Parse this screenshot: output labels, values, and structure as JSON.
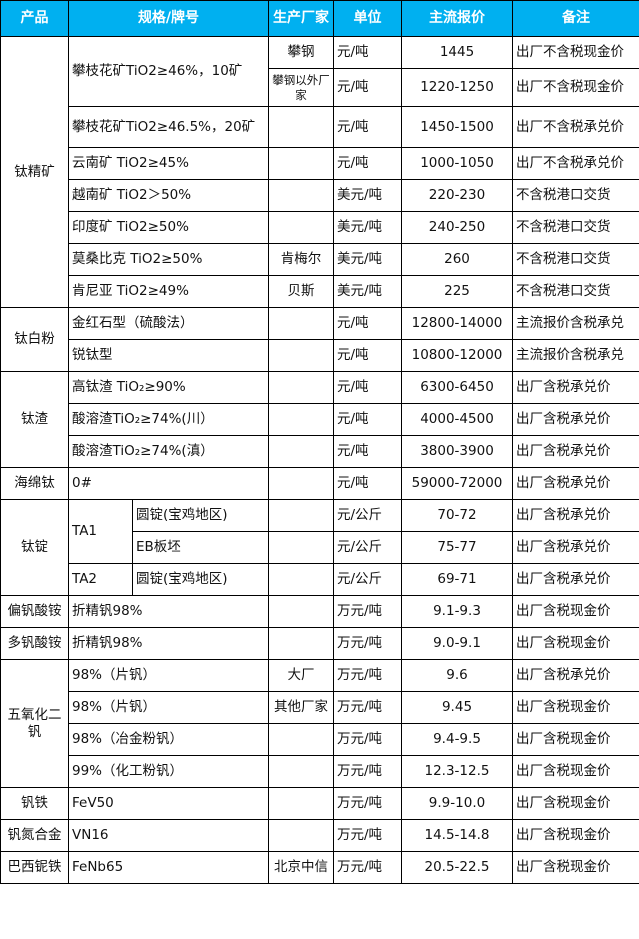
{
  "header": {
    "product": "产品",
    "spec": "规格/牌号",
    "maker": "生产厂家",
    "unit": "单位",
    "price": "主流报价",
    "note": "备注"
  },
  "colors": {
    "header_bg": "#00B0F0",
    "header_text": "#FFFFFF"
  },
  "groups": [
    {
      "product": "钛精矿",
      "rows": [
        {
          "spec": "攀枝花矿TiO2≥46%，10矿",
          "maker": "攀钢",
          "unit": "元/吨",
          "price": "1445",
          "note": "出厂不含税现金价"
        },
        {
          "maker": "攀钢以外厂家",
          "unit": "元/吨",
          "price": "1220-1250",
          "note": "出厂不含税现金价"
        },
        {
          "spec": "攀枝花矿TiO2≥46.5%，20矿",
          "maker": "",
          "unit": "元/吨",
          "price": "1450-1500",
          "note": "出厂不含税承兑价"
        },
        {
          "spec": "云南矿 TiO2≥45%",
          "maker": "",
          "unit": "元/吨",
          "price": "1000-1050",
          "note": "出厂不含税承兑价"
        },
        {
          "spec": "越南矿 TiO2＞50%",
          "maker": "",
          "unit": "美元/吨",
          "price": "220-230",
          "note": "不含税港口交货"
        },
        {
          "spec": "印度矿 TiO2≥50%",
          "maker": "",
          "unit": "美元/吨",
          "price": "240-250",
          "note": "不含税港口交货"
        },
        {
          "spec": "莫桑比克 TiO2≥50%",
          "maker": "肯梅尔",
          "unit": "美元/吨",
          "price": "260",
          "note": "不含税港口交货"
        },
        {
          "spec": "肯尼亚 TiO2≥49%",
          "maker": "贝斯",
          "unit": "美元/吨",
          "price": "225",
          "note": "不含税港口交货"
        }
      ]
    },
    {
      "product": "钛白粉",
      "rows": [
        {
          "spec": "金红石型（硫酸法）",
          "maker": "",
          "unit": "元/吨",
          "price": "12800-14000",
          "note": "主流报价含税承兑"
        },
        {
          "spec": "锐钛型",
          "maker": "",
          "unit": "元/吨",
          "price": "10800-12000",
          "note": "主流报价含税承兑"
        }
      ]
    },
    {
      "product": "钛渣",
      "rows": [
        {
          "spec": "高钛渣 TiO₂≥90%",
          "maker": "",
          "unit": "元/吨",
          "price": "6300-6450",
          "note": "出厂含税承兑价"
        },
        {
          "spec": "酸溶渣TiO₂≥74%(川）",
          "maker": "",
          "unit": "元/吨",
          "price": "4000-4500",
          "note": "出厂含税承兑价"
        },
        {
          "spec": "酸溶渣TiO₂≥74%(滇）",
          "maker": "",
          "unit": "元/吨",
          "price": "3800-3900",
          "note": "出厂含税承兑价"
        }
      ]
    },
    {
      "product": "海绵钛",
      "rows": [
        {
          "spec": "0#",
          "maker": "",
          "unit": "元/吨",
          "price": "59000-72000",
          "note": "出厂含税承兑价"
        }
      ]
    },
    {
      "product": "钛锭",
      "rows": [
        {
          "grade": "TA1",
          "sub": "圆锭(宝鸡地区)",
          "maker": "",
          "unit": "元/公斤",
          "price": "70-72",
          "note": "出厂含税承兑价"
        },
        {
          "sub": "EB板坯",
          "maker": "",
          "unit": "元/公斤",
          "price": "75-77",
          "note": "出厂含税承兑价"
        },
        {
          "grade": "TA2",
          "sub": "圆锭(宝鸡地区)",
          "maker": "",
          "unit": "元/公斤",
          "price": "69-71",
          "note": "出厂含税承兑价"
        }
      ]
    },
    {
      "product": "偏钒酸铵",
      "rows": [
        {
          "spec": "折精钒98%",
          "maker": "",
          "unit": "万元/吨",
          "price": "9.1-9.3",
          "note": "出厂含税现金价"
        }
      ]
    },
    {
      "product": "多钒酸铵",
      "rows": [
        {
          "spec": "折精钒98%",
          "maker": "",
          "unit": "万元/吨",
          "price": "9.0-9.1",
          "note": "出厂含税现金价"
        }
      ]
    },
    {
      "product": "五氧化二钒",
      "rows": [
        {
          "spec": "98%（片钒）",
          "maker": "大厂",
          "unit": "万元/吨",
          "price": "9.6",
          "note": "出厂含税承兑价"
        },
        {
          "spec": "98%（片钒）",
          "maker": "其他厂家",
          "unit": "万元/吨",
          "price": "9.45",
          "note": "出厂含税现金价"
        },
        {
          "spec": "98%（冶金粉钒）",
          "maker": "",
          "unit": "万元/吨",
          "price": "9.4-9.5",
          "note": "出厂含税现金价"
        },
        {
          "spec": "99%（化工粉钒）",
          "maker": "",
          "unit": "万元/吨",
          "price": "12.3-12.5",
          "note": "出厂含税现金价"
        }
      ]
    },
    {
      "product": "钒铁",
      "rows": [
        {
          "spec": "FeV50",
          "maker": "",
          "unit": "万元/吨",
          "price": "9.9-10.0",
          "note": "出厂含税现金价"
        }
      ]
    },
    {
      "product": "钒氮合金",
      "rows": [
        {
          "spec": "VN16",
          "maker": "",
          "unit": "万元/吨",
          "price": "14.5-14.8",
          "note": "出厂含税现金价"
        }
      ]
    },
    {
      "product": "巴西铌铁",
      "rows": [
        {
          "spec": "FeNb65",
          "maker": "北京中信",
          "unit": "万元/吨",
          "price": "20.5-22.5",
          "note": "出厂含税现金价"
        }
      ]
    }
  ]
}
